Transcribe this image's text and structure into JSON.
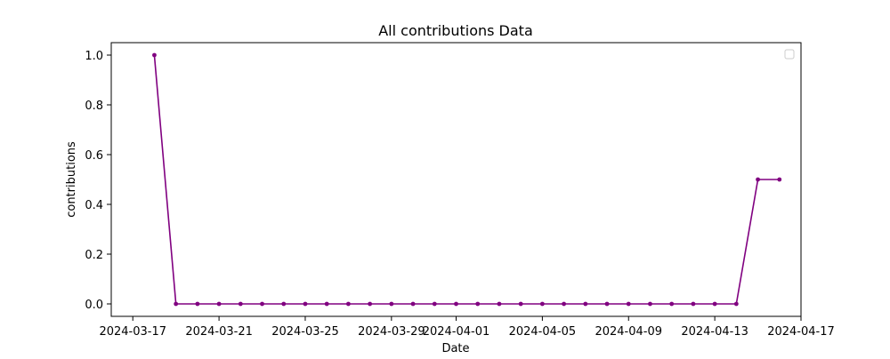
{
  "chart_data": {
    "type": "line",
    "title": "All contributions Data",
    "xlabel": "Date",
    "ylabel": "contributions",
    "x": [
      "2024-03-18",
      "2024-03-19",
      "2024-03-20",
      "2024-03-21",
      "2024-03-22",
      "2024-03-23",
      "2024-03-24",
      "2024-03-25",
      "2024-03-26",
      "2024-03-27",
      "2024-03-28",
      "2024-03-29",
      "2024-03-30",
      "2024-03-31",
      "2024-04-01",
      "2024-04-02",
      "2024-04-03",
      "2024-04-04",
      "2024-04-05",
      "2024-04-06",
      "2024-04-07",
      "2024-04-08",
      "2024-04-09",
      "2024-04-10",
      "2024-04-11",
      "2024-04-12",
      "2024-04-13",
      "2024-04-14",
      "2024-04-15",
      "2024-04-16"
    ],
    "series": [
      {
        "values": [
          1,
          0,
          0,
          0,
          0,
          0,
          0,
          0,
          0,
          0,
          0,
          0,
          0,
          0,
          0,
          0,
          0,
          0,
          0,
          0,
          0,
          0,
          0,
          0,
          0,
          0,
          0,
          0,
          0.5,
          0.5
        ],
        "color": "#800080",
        "marker": "circle"
      }
    ],
    "xlim": [
      "2024-03-16",
      "2024-04-17"
    ],
    "ylim": [
      -0.05,
      1.05
    ],
    "xticks": [
      "2024-03-17",
      "2024-03-21",
      "2024-03-25",
      "2024-03-29",
      "2024-04-01",
      "2024-04-05",
      "2024-04-09",
      "2024-04-13",
      "2024-04-17"
    ],
    "yticks": [
      "0.0",
      "0.2",
      "0.4",
      "0.6",
      "0.8",
      "1.0"
    ],
    "grid": false,
    "legend": {
      "placement": "top-right",
      "entries": []
    }
  }
}
